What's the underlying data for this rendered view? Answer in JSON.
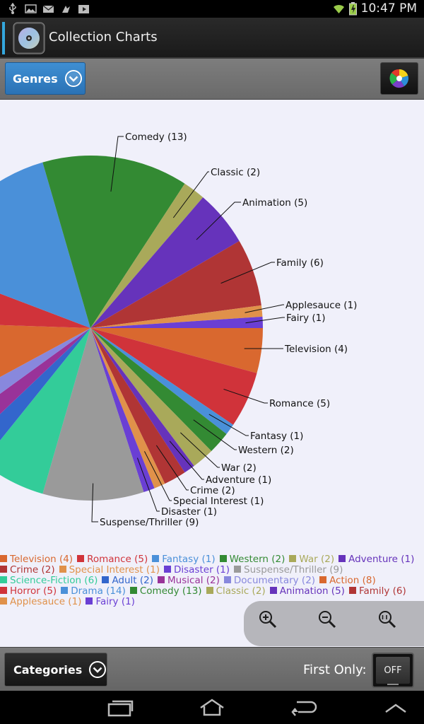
{
  "status_bar": {
    "time": "10:47 PM",
    "icons": [
      "usb-icon",
      "image-icon",
      "mail-icon",
      "notification-icon",
      "media-icon",
      "wifi-icon",
      "battery-charging-icon"
    ]
  },
  "action_bar": {
    "title": "Collection Charts",
    "app_icon": "disc-folder-icon"
  },
  "toolbar": {
    "genres_label": "Genres",
    "color_icon": "color-wheel-icon"
  },
  "chart_data": {
    "type": "pie",
    "slices": [
      {
        "label": "Television",
        "value": 4,
        "color": "#d9682f"
      },
      {
        "label": "Romance",
        "value": 5,
        "color": "#d0333a"
      },
      {
        "label": "Fantasy",
        "value": 1,
        "color": "#4a90d9"
      },
      {
        "label": "Western",
        "value": 2,
        "color": "#338a33"
      },
      {
        "label": "War",
        "value": 2,
        "color": "#a9a95a"
      },
      {
        "label": "Adventure",
        "value": 1,
        "color": "#6633bb"
      },
      {
        "label": "Crime",
        "value": 2,
        "color": "#b03535"
      },
      {
        "label": "Special Interest",
        "value": 1,
        "color": "#e0914a"
      },
      {
        "label": "Disaster",
        "value": 1,
        "color": "#6a3fd4"
      },
      {
        "label": "Suspense/Thriller",
        "value": 9,
        "color": "#9a9a9a"
      },
      {
        "label": "Science-Fiction",
        "value": 6,
        "color": "#33cc99"
      },
      {
        "label": "Adult",
        "value": 2,
        "color": "#3366cc"
      },
      {
        "label": "Musical",
        "value": 2,
        "color": "#993399"
      },
      {
        "label": "Documentary",
        "value": 2,
        "color": "#8888dd"
      },
      {
        "label": "Action",
        "value": 8,
        "color": "#d9682f"
      },
      {
        "label": "Horror",
        "value": 5,
        "color": "#d0333a"
      },
      {
        "label": "Drama",
        "value": 14,
        "color": "#4a90d9"
      },
      {
        "label": "Comedy",
        "value": 13,
        "color": "#338a33"
      },
      {
        "label": "Classic",
        "value": 2,
        "color": "#a9a95a"
      },
      {
        "label": "Animation",
        "value": 5,
        "color": "#6633bb"
      },
      {
        "label": "Family",
        "value": 6,
        "color": "#b03535"
      },
      {
        "label": "Applesauce",
        "value": 1,
        "color": "#e0914a"
      },
      {
        "label": "Fairy",
        "value": 1,
        "color": "#6a3fd4"
      }
    ],
    "visible_callouts": [
      "Comedy (13)",
      "Classic (2)",
      "Animation (5)",
      "Family (6)",
      "Applesauce (1)",
      "Fairy (1)",
      "Television (4)",
      "Romance (5)",
      "Fantasy (1)",
      "Western (2)",
      "War (2)",
      "Adventure (1)",
      "Crime (2)",
      "Special Interest (1)",
      "Disaster (1)",
      "Suspense/Thriller (9)"
    ],
    "legend_rows": [
      [
        "Television (4)",
        "Romance (5)",
        "Fantasy (1)",
        "Western (2)",
        "War (2)",
        "Adventure (1)"
      ],
      [
        "Crime (2)",
        "Special Interest (1)",
        "Disaster (1)",
        "Suspense/Thriller (9)"
      ],
      [
        "Science-Fiction (6)",
        "Adult (2)",
        "Musical (2)",
        "Documentary (2)",
        "Action (8)"
      ],
      [
        "Horror (5)",
        "Drama (14)",
        "Comedy (13)",
        "Classic (2)",
        "Animation (5)",
        "Family (6)"
      ],
      [
        "Applesauce (1)",
        "Fairy (1)"
      ]
    ],
    "legend_placement": "bottom"
  },
  "zoom": {
    "zoom_in_icon": "zoom-in-icon",
    "zoom_out_icon": "zoom-out-icon",
    "zoom_reset_icon": "zoom-reset-icon"
  },
  "bottom_bar": {
    "categories_label": "Categories",
    "first_only_label": "First Only:",
    "toggle_state": "OFF"
  },
  "nav_bar": {
    "icons": [
      "recent-apps-icon",
      "home-icon",
      "back-icon",
      "menu-up-icon"
    ]
  }
}
